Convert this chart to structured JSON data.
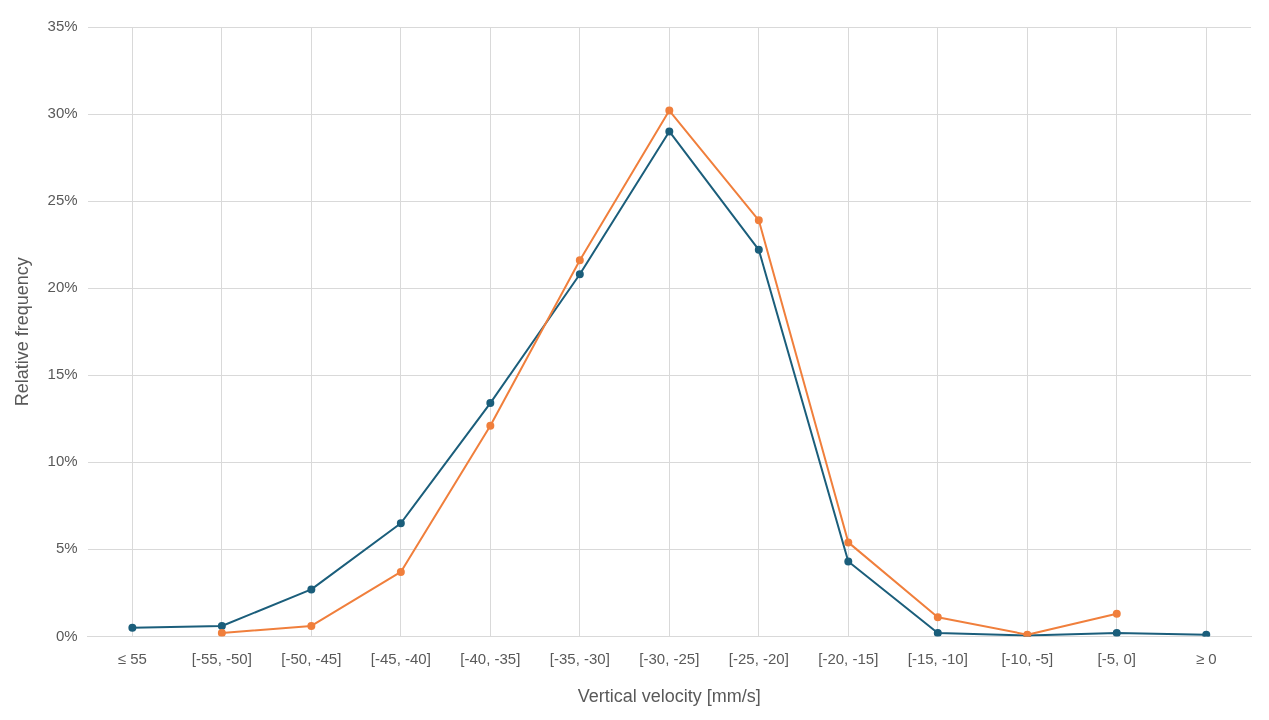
{
  "chart_data": {
    "type": "line",
    "xlabel": "Vertical velocity [mm/s]",
    "ylabel": "Relative frequency",
    "categories": [
      "≤ 55",
      "[-55, -50]",
      "[-50, -45]",
      "[-45, -40]",
      "[-40, -35]",
      "[-35, -30]",
      "[-30, -25]",
      "[-25, -20]",
      "[-20, -15]",
      "[-15, -10]",
      "[-10, -5]",
      "[-5, 0]",
      "≥ 0"
    ],
    "series": [
      {
        "color": "#1b5e7b",
        "values": [
          0.5,
          0.6,
          2.7,
          6.5,
          13.4,
          20.8,
          29.0,
          22.2,
          4.3,
          0.2,
          0.05,
          0.2,
          0.1
        ]
      },
      {
        "color": "#f07f3c",
        "values": [
          null,
          0.2,
          0.6,
          3.7,
          12.1,
          21.6,
          30.2,
          23.9,
          5.4,
          1.1,
          0.1,
          1.3,
          null
        ]
      }
    ],
    "ylim": [
      0,
      35
    ],
    "yticks": [
      {
        "value": 0,
        "label": "0%"
      },
      {
        "value": 5,
        "label": "5%"
      },
      {
        "value": 10,
        "label": "10%"
      },
      {
        "value": 15,
        "label": "15%"
      },
      {
        "value": 20,
        "label": "20%"
      },
      {
        "value": 25,
        "label": "25%"
      },
      {
        "value": 30,
        "label": "30%"
      },
      {
        "value": 35,
        "label": "35%"
      }
    ],
    "grid": true,
    "marker": "circle",
    "line_style": "solid"
  }
}
